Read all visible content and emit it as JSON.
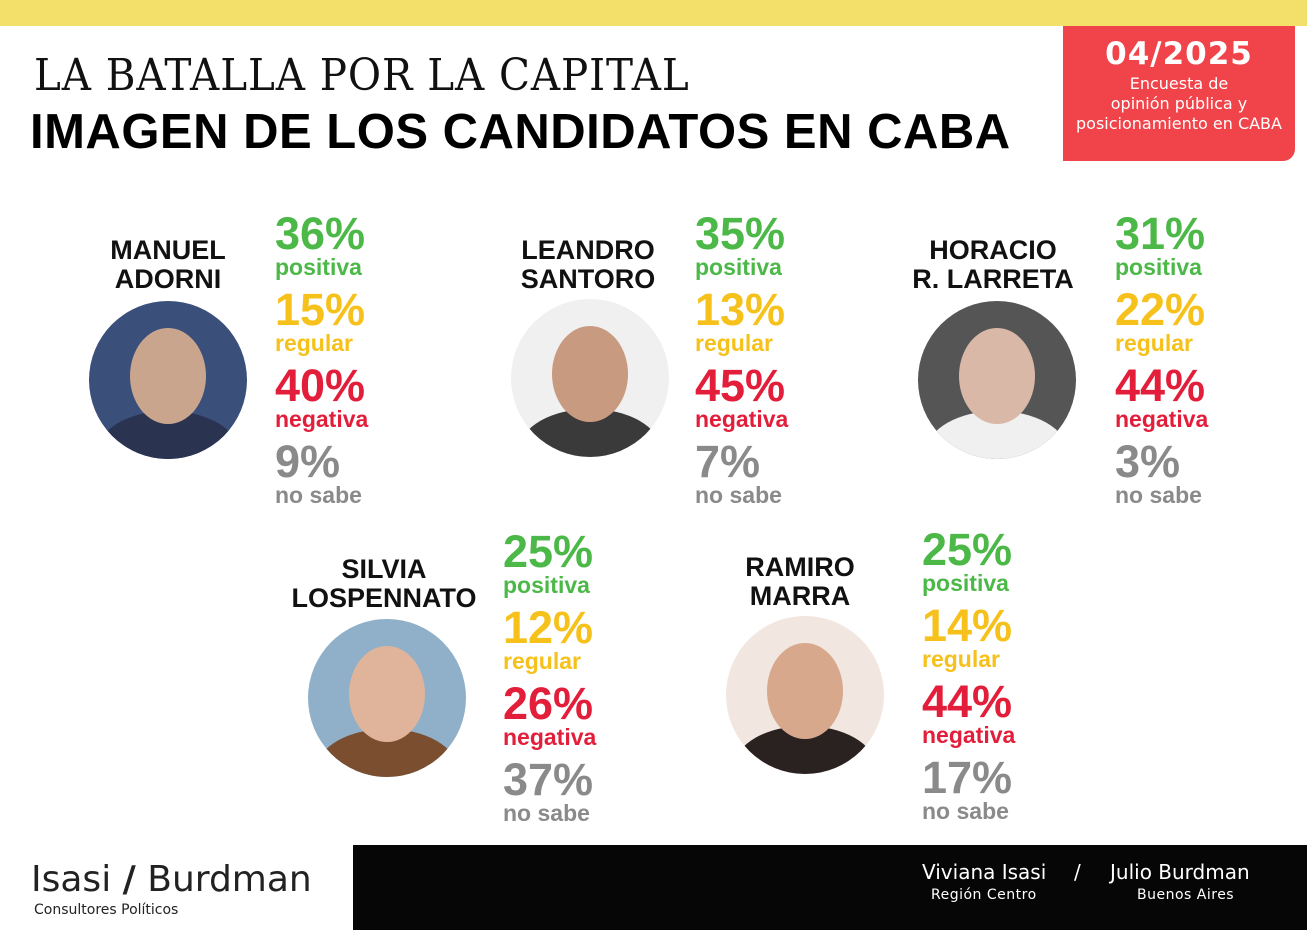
{
  "header": {
    "kicker": "LA BATALLA POR LA CAPITAL",
    "title": "IMAGEN DE LOS CANDIDATOS EN CABA",
    "date": "04/2025",
    "subtitle_lines": [
      "Encuesta de",
      "opinión pública y",
      "posicionamiento en CABA"
    ]
  },
  "colors": {
    "positiva": "#4cb848",
    "regular": "#f5c11a",
    "negativa": "#e31e3a",
    "no_sabe": "#8a8a8a",
    "accent_red": "#f0444a",
    "top_bar": "#f3e06a"
  },
  "labels": {
    "positiva": "positiva",
    "regular": "regular",
    "negativa": "negativa",
    "no_sabe": "no sabe"
  },
  "candidates": [
    {
      "name_lines": [
        "MANUEL",
        "ADORNI"
      ],
      "positiva": "36%",
      "regular": "15%",
      "negativa": "40%",
      "no_sabe": "9%"
    },
    {
      "name_lines": [
        "LEANDRO",
        "SANTORO"
      ],
      "positiva": "35%",
      "regular": "13%",
      "negativa": "45%",
      "no_sabe": "7%"
    },
    {
      "name_lines": [
        "HORACIO",
        "R. LARRETA"
      ],
      "positiva": "31%",
      "regular": "22%",
      "negativa": "44%",
      "no_sabe": "3%"
    },
    {
      "name_lines": [
        "SILVIA",
        "LOSPENNATO"
      ],
      "positiva": "25%",
      "regular": "12%",
      "negativa": "26%",
      "no_sabe": "37%"
    },
    {
      "name_lines": [
        "RAMIRO",
        "MARRA"
      ],
      "positiva": "25%",
      "regular": "14%",
      "negativa": "44%",
      "no_sabe": "17%"
    }
  ],
  "footer": {
    "brand_left": "Isasi",
    "brand_slash": "/",
    "brand_right": "Burdman",
    "brand_sub": "Consultores Políticos",
    "person1": "Viviana Isasi",
    "person1_region": "Región Centro",
    "separator": "/",
    "person2": "Julio Burdman",
    "person2_region": "Buenos Aires"
  }
}
